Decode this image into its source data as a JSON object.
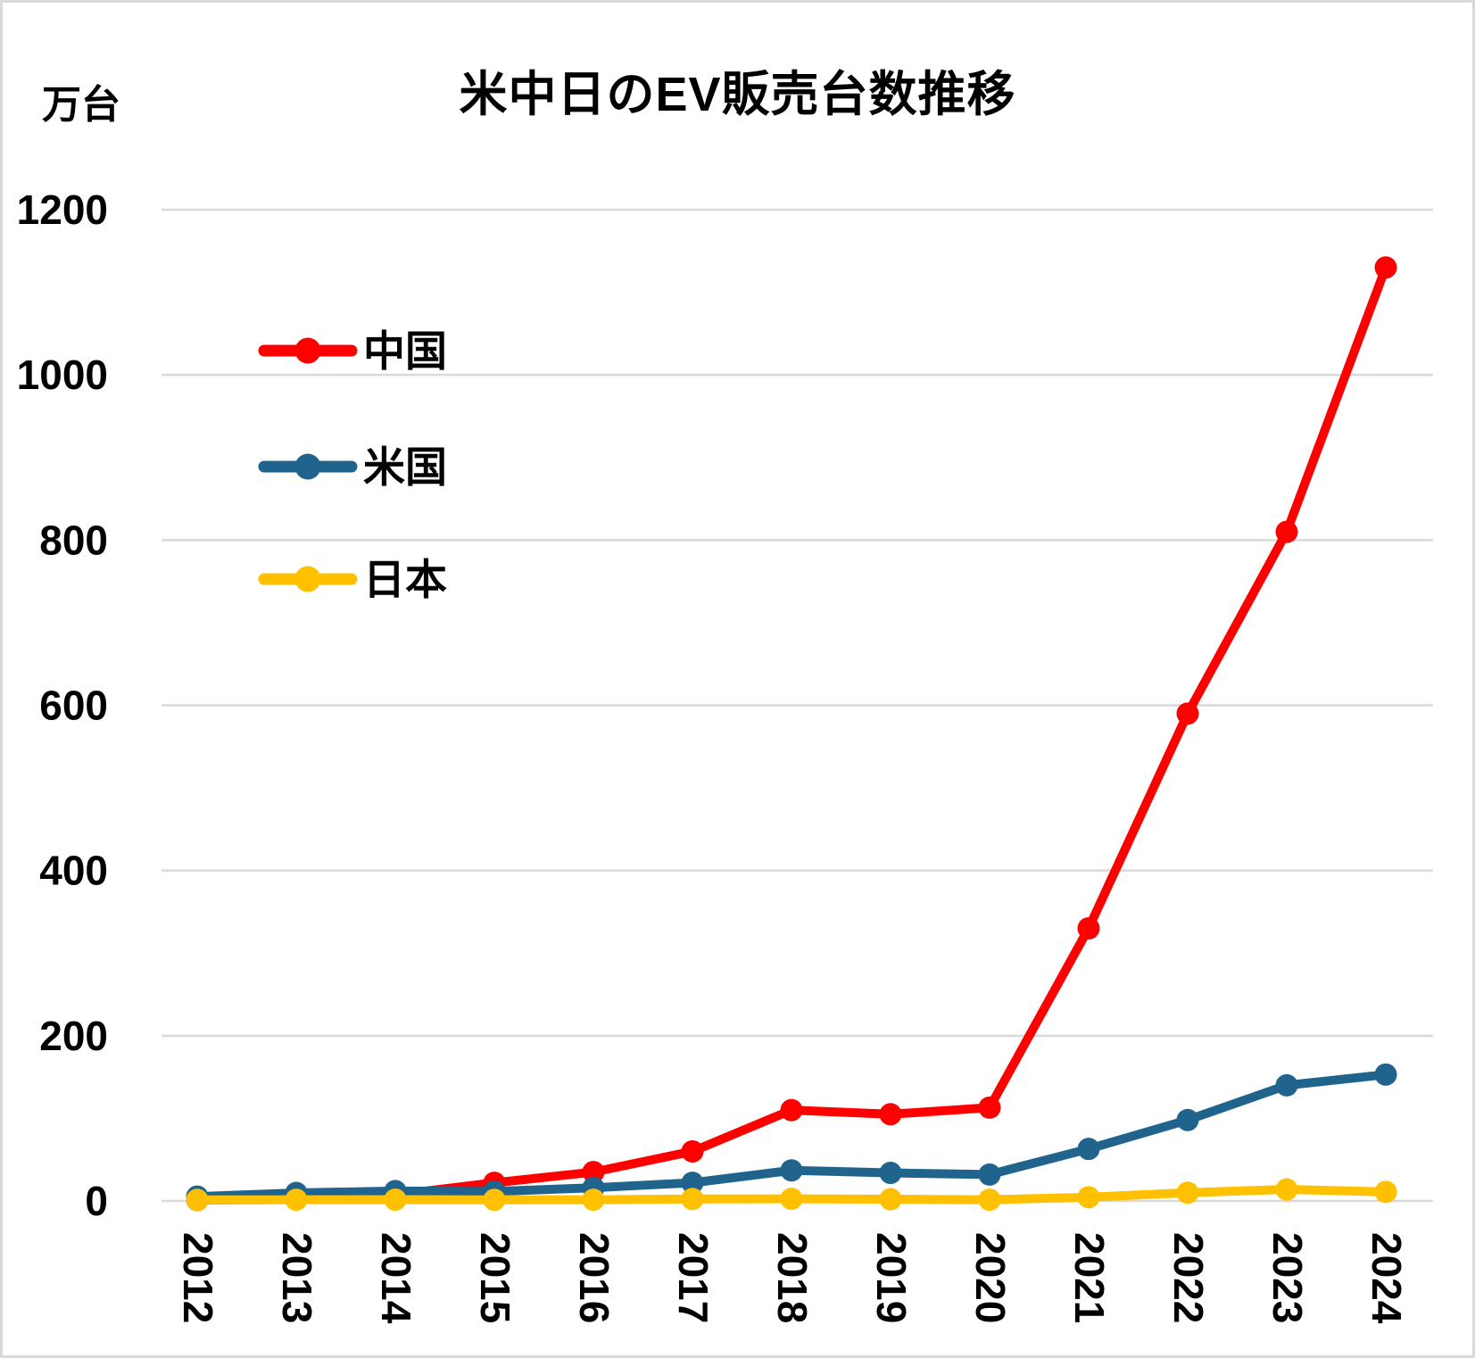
{
  "page": {
    "background_color": "#FFFFFF",
    "frame_border_color": "#D9D9D9"
  },
  "chart_data": {
    "type": "line",
    "title": "米中日のEV販売台数推移",
    "unit_label": "万台",
    "x": [
      2012,
      2013,
      2014,
      2015,
      2016,
      2017,
      2018,
      2019,
      2020,
      2021,
      2022,
      2023,
      2024
    ],
    "yticks": [
      0,
      200,
      400,
      600,
      800,
      1000,
      1200
    ],
    "ylim": [
      0,
      1200
    ],
    "grid": "horizontal-only",
    "x_tick_rotation_deg": 90,
    "legend_position": "inside-upper-left",
    "gridline_color": "#D9D9D9",
    "text_color": "#000000",
    "series": [
      {
        "name": "中国",
        "color": "#FF0000",
        "values": [
          1.2,
          1.8,
          7.5,
          22,
          35,
          60,
          110,
          105,
          113,
          330,
          590,
          810,
          1130
        ]
      },
      {
        "name": "米国",
        "color": "#20648E",
        "values": [
          5.3,
          9.7,
          12,
          11.5,
          16,
          22,
          37,
          34,
          32,
          63,
          98,
          140,
          153
        ]
      },
      {
        "name": "日本",
        "color": "#FFC000",
        "values": [
          1.3,
          1.5,
          1.6,
          1.4,
          1.5,
          2.4,
          2.6,
          2.1,
          1.5,
          4.5,
          10,
          14,
          11
        ]
      }
    ]
  }
}
